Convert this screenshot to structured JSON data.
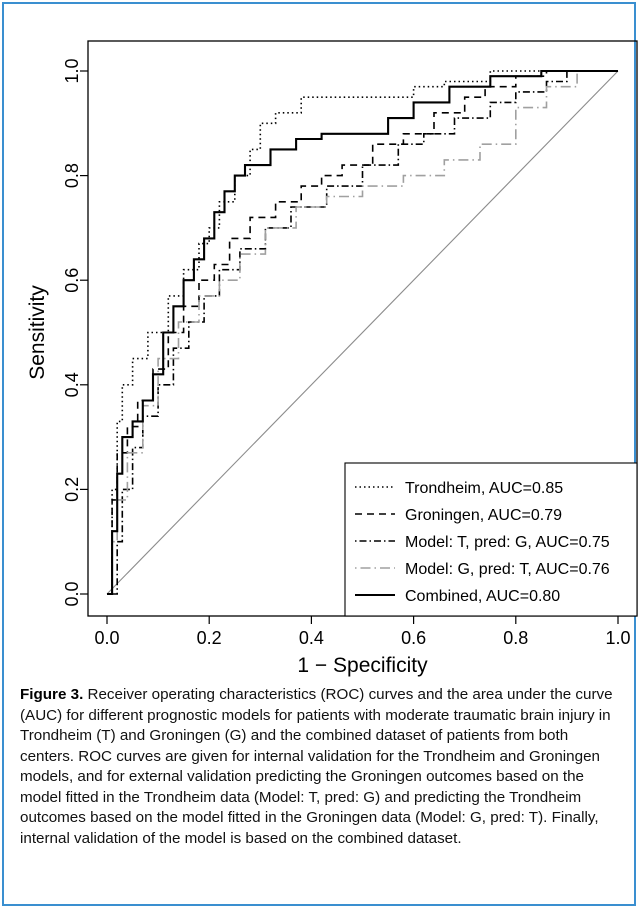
{
  "chart_data": {
    "type": "line",
    "xlabel": "1 − Specificity",
    "ylabel": "Sensitivity",
    "xlim": [
      0,
      1
    ],
    "ylim": [
      0,
      1
    ],
    "xticks": [
      "0.0",
      "0.2",
      "0.4",
      "0.6",
      "0.8",
      "1.0"
    ],
    "yticks": [
      "0.0",
      "0.2",
      "0.4",
      "0.6",
      "0.8",
      "1.0"
    ],
    "grid": false,
    "legend_position": "bottom-right",
    "reference_diagonal": true,
    "series": [
      {
        "name": "Trondheim, AUC=0.85",
        "style": "dotted",
        "color": "#000000",
        "x": [
          0,
          0.01,
          0.01,
          0.02,
          0.02,
          0.03,
          0.03,
          0.05,
          0.05,
          0.08,
          0.08,
          0.12,
          0.12,
          0.15,
          0.15,
          0.18,
          0.18,
          0.2,
          0.2,
          0.22,
          0.22,
          0.25,
          0.25,
          0.28,
          0.28,
          0.3,
          0.3,
          0.33,
          0.33,
          0.38,
          0.38,
          0.43,
          0.43,
          0.6,
          0.6,
          0.66,
          0.66,
          0.75,
          0.75,
          0.85,
          0.85,
          1.0
        ],
        "y": [
          0,
          0,
          0.2,
          0.2,
          0.33,
          0.33,
          0.4,
          0.4,
          0.45,
          0.45,
          0.5,
          0.5,
          0.57,
          0.57,
          0.62,
          0.62,
          0.67,
          0.67,
          0.7,
          0.7,
          0.75,
          0.75,
          0.8,
          0.8,
          0.85,
          0.85,
          0.9,
          0.9,
          0.92,
          0.92,
          0.95,
          0.95,
          0.95,
          0.95,
          0.97,
          0.97,
          0.98,
          0.98,
          1.0,
          1.0,
          1.0,
          1.0
        ]
      },
      {
        "name": "Groningen, AUC=0.79",
        "style": "dashed",
        "color": "#000000",
        "x": [
          0,
          0.01,
          0.01,
          0.02,
          0.02,
          0.04,
          0.04,
          0.06,
          0.06,
          0.09,
          0.09,
          0.12,
          0.12,
          0.15,
          0.15,
          0.18,
          0.18,
          0.21,
          0.21,
          0.24,
          0.24,
          0.28,
          0.28,
          0.33,
          0.33,
          0.38,
          0.38,
          0.42,
          0.42,
          0.46,
          0.46,
          0.52,
          0.52,
          0.58,
          0.58,
          0.64,
          0.64,
          0.7,
          0.7,
          0.74,
          0.74,
          0.8,
          0.8,
          0.86,
          0.86,
          1.0
        ],
        "y": [
          0,
          0,
          0.18,
          0.18,
          0.27,
          0.27,
          0.32,
          0.32,
          0.37,
          0.37,
          0.43,
          0.43,
          0.5,
          0.5,
          0.55,
          0.55,
          0.6,
          0.6,
          0.63,
          0.63,
          0.68,
          0.68,
          0.72,
          0.72,
          0.75,
          0.75,
          0.78,
          0.78,
          0.8,
          0.8,
          0.82,
          0.82,
          0.86,
          0.86,
          0.88,
          0.88,
          0.92,
          0.92,
          0.95,
          0.95,
          0.97,
          0.97,
          0.99,
          0.99,
          1.0,
          1.0
        ]
      },
      {
        "name": "Model: T, pred: G, AUC=0.75",
        "style": "dashdot",
        "color": "#000000",
        "x": [
          0,
          0.02,
          0.02,
          0.03,
          0.03,
          0.05,
          0.05,
          0.07,
          0.07,
          0.1,
          0.1,
          0.13,
          0.13,
          0.16,
          0.16,
          0.19,
          0.19,
          0.22,
          0.22,
          0.26,
          0.26,
          0.31,
          0.31,
          0.36,
          0.36,
          0.43,
          0.43,
          0.5,
          0.5,
          0.57,
          0.57,
          0.62,
          0.62,
          0.68,
          0.68,
          0.75,
          0.75,
          0.8,
          0.8,
          0.86,
          0.86,
          0.9,
          0.9,
          1.0
        ],
        "y": [
          0,
          0,
          0.1,
          0.1,
          0.2,
          0.2,
          0.28,
          0.28,
          0.34,
          0.34,
          0.4,
          0.4,
          0.47,
          0.47,
          0.52,
          0.52,
          0.57,
          0.57,
          0.62,
          0.62,
          0.66,
          0.66,
          0.7,
          0.7,
          0.74,
          0.74,
          0.78,
          0.78,
          0.82,
          0.82,
          0.86,
          0.86,
          0.88,
          0.88,
          0.91,
          0.91,
          0.94,
          0.94,
          0.96,
          0.96,
          0.98,
          0.98,
          1.0,
          1.0
        ]
      },
      {
        "name": "Model: G, pred: T, AUC=0.76",
        "style": "dashdot-long",
        "color": "#a0a0a0",
        "x": [
          0,
          0.01,
          0.01,
          0.02,
          0.02,
          0.04,
          0.04,
          0.07,
          0.07,
          0.1,
          0.1,
          0.14,
          0.14,
          0.18,
          0.18,
          0.22,
          0.22,
          0.26,
          0.26,
          0.31,
          0.31,
          0.37,
          0.37,
          0.43,
          0.43,
          0.5,
          0.5,
          0.58,
          0.58,
          0.66,
          0.66,
          0.73,
          0.73,
          0.8,
          0.8,
          0.86,
          0.86,
          0.92,
          0.92,
          1.0
        ],
        "y": [
          0,
          0,
          0.1,
          0.1,
          0.18,
          0.18,
          0.27,
          0.27,
          0.36,
          0.36,
          0.45,
          0.45,
          0.52,
          0.52,
          0.57,
          0.57,
          0.6,
          0.6,
          0.65,
          0.65,
          0.7,
          0.7,
          0.74,
          0.74,
          0.76,
          0.76,
          0.78,
          0.78,
          0.8,
          0.8,
          0.83,
          0.83,
          0.86,
          0.86,
          0.93,
          0.93,
          0.97,
          0.97,
          1.0,
          1.0
        ]
      },
      {
        "name": "Combined, AUC=0.80",
        "style": "solid",
        "color": "#000000",
        "x": [
          0,
          0.01,
          0.01,
          0.02,
          0.02,
          0.03,
          0.03,
          0.05,
          0.05,
          0.07,
          0.07,
          0.09,
          0.09,
          0.11,
          0.11,
          0.13,
          0.13,
          0.15,
          0.15,
          0.17,
          0.17,
          0.19,
          0.19,
          0.21,
          0.21,
          0.23,
          0.23,
          0.25,
          0.25,
          0.27,
          0.27,
          0.32,
          0.32,
          0.37,
          0.37,
          0.42,
          0.42,
          0.48,
          0.48,
          0.55,
          0.55,
          0.6,
          0.6,
          0.67,
          0.67,
          0.75,
          0.75,
          0.85,
          0.85,
          1.0
        ],
        "y": [
          0,
          0,
          0.12,
          0.12,
          0.23,
          0.23,
          0.3,
          0.3,
          0.33,
          0.33,
          0.37,
          0.37,
          0.42,
          0.42,
          0.5,
          0.5,
          0.55,
          0.55,
          0.6,
          0.6,
          0.64,
          0.64,
          0.68,
          0.68,
          0.73,
          0.73,
          0.77,
          0.77,
          0.8,
          0.8,
          0.82,
          0.82,
          0.85,
          0.85,
          0.87,
          0.87,
          0.88,
          0.88,
          0.88,
          0.88,
          0.91,
          0.91,
          0.94,
          0.94,
          0.97,
          0.97,
          0.99,
          0.99,
          1.0,
          1.0
        ]
      }
    ]
  },
  "caption": {
    "label": "Figure 3.",
    "text": " Receiver operating characteristics (ROC) curves and the area under the curve (AUC) for different prognostic models for patients with moderate traumatic brain injury in Trondheim (T) and Groningen (G) and the combined dataset of patients from both centers. ROC curves are given for internal validation for the Trondheim and Groningen models, and for external validation predicting the Groningen outcomes based on the model fitted in the Trondheim data (Model: T, pred: G) and predicting the Trondheim outcomes based on the model fitted in the Groningen data (Model: G, pred: T). Finally, internal validation of the model is based on the combined dataset."
  }
}
